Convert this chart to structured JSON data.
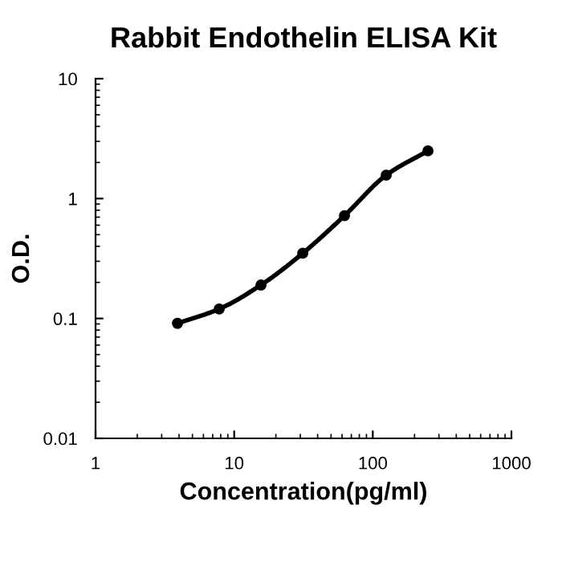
{
  "chart_data": {
    "type": "line",
    "title": "Rabbit Endothelin ELISA Kit",
    "xlabel": "Concentration(pg/ml)",
    "ylabel": "O.D.",
    "x": [
      3.9,
      7.8,
      15.6,
      31.25,
      62.5,
      125,
      250
    ],
    "series": [
      {
        "color": "#000000",
        "values": [
          0.091,
          0.12,
          0.19,
          0.35,
          0.72,
          1.57,
          2.5
        ]
      }
    ],
    "log": "xy",
    "xlim": [
      1,
      1000
    ],
    "ylim": [
      0.01,
      10
    ],
    "xticks": [
      1,
      10,
      100,
      1000
    ],
    "yticks": [
      0.01,
      0.1,
      1,
      10
    ],
    "marker": "circle",
    "line_style": "solid",
    "grid": false,
    "legend": false
  }
}
